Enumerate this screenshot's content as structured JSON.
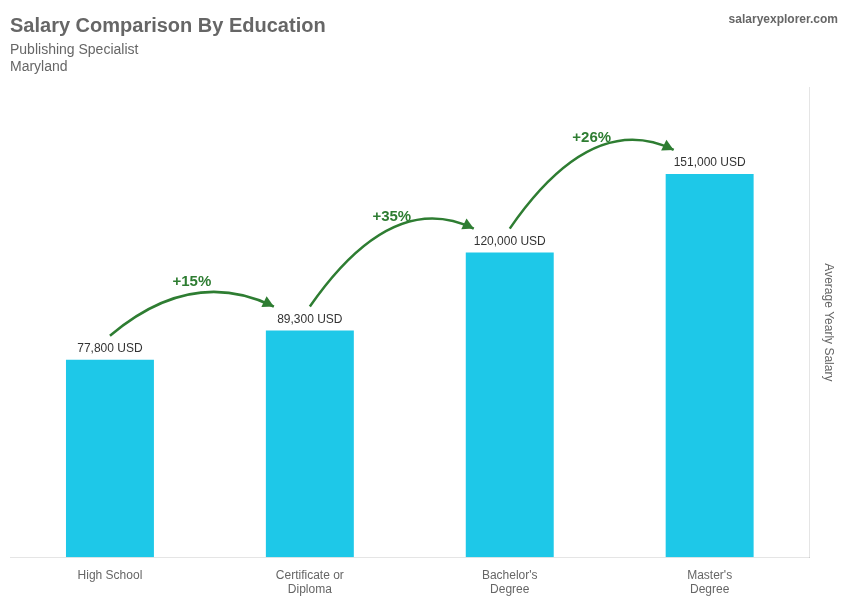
{
  "chart_data": {
    "type": "bar",
    "title": "Salary Comparison By Education",
    "subtitle": [
      "Publishing Specialist",
      "Maryland"
    ],
    "source": "salaryexplorer.com",
    "ylabel": "Average Yearly Salary",
    "categories": [
      "High School",
      "Certificate or\nDiploma",
      "Bachelor's\nDegree",
      "Master's\nDegree"
    ],
    "values": [
      77800,
      89300,
      120000,
      151000
    ],
    "value_labels": [
      "77,800 USD",
      "89,300 USD",
      "120,000 USD",
      "151,000 USD"
    ],
    "data_labels": true,
    "annotations": [
      "+15%",
      "+35%",
      "+26%"
    ],
    "color": "#1ec8e8",
    "ylim": [
      0,
      185000
    ],
    "grid": false,
    "tick_labels": "x"
  }
}
